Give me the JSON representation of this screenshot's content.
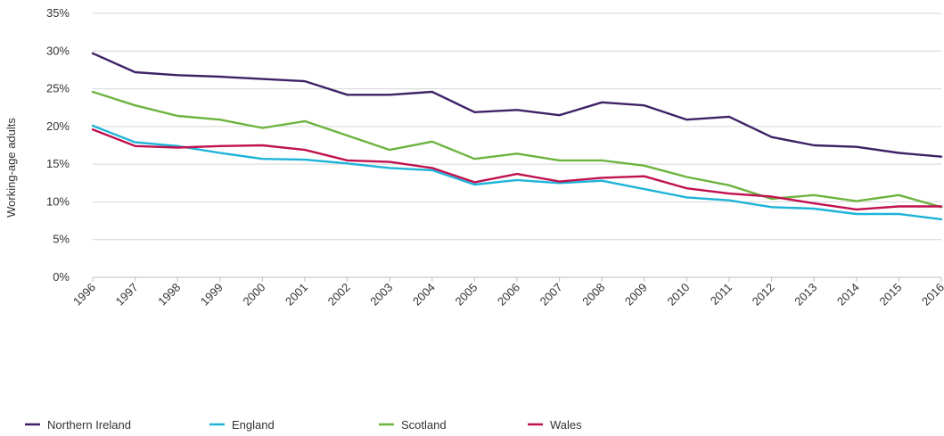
{
  "chart_data": {
    "type": "line",
    "title": "",
    "xlabel": "",
    "ylabel": "Working-age adults",
    "ylim": [
      0,
      35
    ],
    "y_ticks": [
      "0%",
      "5%",
      "10%",
      "15%",
      "20%",
      "25%",
      "30%",
      "35%"
    ],
    "grid": "horizontal",
    "legend_position": "bottom-left",
    "x": [
      "1996",
      "1997",
      "1998",
      "1999",
      "2000",
      "2001",
      "2002",
      "2003",
      "2004",
      "2005",
      "2006",
      "2007",
      "2008",
      "2009",
      "2010",
      "2011",
      "2012",
      "2013",
      "2014",
      "2015",
      "2016"
    ],
    "series": [
      {
        "name": "Northern Ireland",
        "color": "#3f2166",
        "values": [
          29.7,
          27.2,
          26.8,
          26.6,
          26.3,
          26.0,
          24.2,
          24.2,
          24.6,
          21.9,
          22.2,
          21.5,
          23.2,
          22.8,
          20.9,
          21.3,
          18.6,
          17.5,
          17.3,
          16.5,
          16.0
        ]
      },
      {
        "name": "England",
        "color": "#1eb3d8",
        "values": [
          20.1,
          17.9,
          17.4,
          16.5,
          15.7,
          15.6,
          15.1,
          14.5,
          14.2,
          12.3,
          12.9,
          12.5,
          12.8,
          11.7,
          10.6,
          10.2,
          9.3,
          9.1,
          8.4,
          8.4,
          7.7
        ]
      },
      {
        "name": "Scotland",
        "color": "#6db33f",
        "values": [
          24.6,
          22.8,
          21.4,
          20.9,
          19.8,
          20.7,
          18.8,
          16.9,
          18.0,
          15.7,
          16.4,
          15.5,
          15.5,
          14.8,
          13.3,
          12.2,
          10.4,
          10.9,
          10.1,
          10.9,
          9.3
        ]
      },
      {
        "name": "Wales",
        "color": "#c0114f",
        "values": [
          19.6,
          17.4,
          17.2,
          17.4,
          17.5,
          16.9,
          15.5,
          15.3,
          14.5,
          12.6,
          13.7,
          12.7,
          13.2,
          13.4,
          11.8,
          11.1,
          10.7,
          9.8,
          9.0,
          9.4,
          9.4
        ]
      }
    ]
  }
}
